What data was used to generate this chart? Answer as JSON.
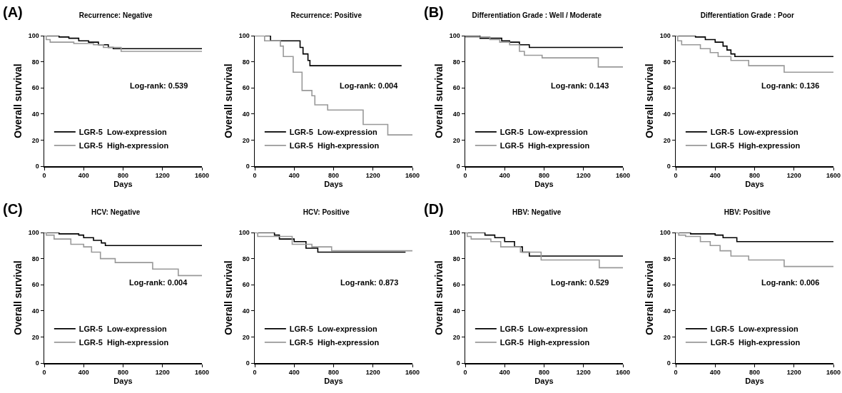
{
  "chart_data": [
    {
      "type": "step",
      "title": "Recurrence: Negative",
      "xlabel": "Days",
      "ylabel": "Overall survival",
      "annotations": [
        "(A)",
        "Log-rank: 0.539"
      ],
      "xlim": [
        0,
        1600
      ],
      "xticks": [
        0,
        400,
        800,
        1200,
        1600
      ],
      "ylim": [
        0,
        100
      ],
      "yticks": [
        0,
        20,
        40,
        60,
        80,
        100
      ],
      "legend": "bottom left",
      "grid": false,
      "series": [
        {
          "name": "LGR-5  Low-expression",
          "color": "#000000",
          "x": [
            0,
            150,
            250,
            350,
            450,
            550,
            650,
            700,
            1600
          ],
          "values": [
            100,
            99,
            98,
            96,
            95,
            93,
            91,
            90,
            90
          ]
        },
        {
          "name": "LGR-5  High-expression",
          "color": "#999999",
          "x": [
            0,
            20,
            60,
            300,
            500,
            600,
            780,
            1600
          ],
          "values": [
            100,
            97,
            95,
            94,
            93,
            91,
            88,
            88
          ]
        }
      ]
    },
    {
      "type": "step",
      "title": "Recurrence: Positive",
      "xlabel": "Days",
      "ylabel": "Overall survival",
      "annotations": [
        "Log-rank: 0.004"
      ],
      "xlim": [
        0,
        1600
      ],
      "xticks": [
        0,
        400,
        800,
        1200,
        1600
      ],
      "ylim": [
        0,
        100
      ],
      "yticks": [
        0,
        20,
        40,
        60,
        80,
        100
      ],
      "legend": "bottom left",
      "grid": false,
      "series": [
        {
          "name": "LGR-5  Low-expression",
          "color": "#000000",
          "x": [
            0,
            160,
            460,
            490,
            540,
            560,
            1490
          ],
          "values": [
            100,
            96,
            91,
            86,
            81,
            77,
            77
          ]
        },
        {
          "name": "LGR-5  High-expression",
          "color": "#999999",
          "x": [
            0,
            100,
            260,
            290,
            390,
            480,
            580,
            610,
            740,
            1100,
            1350,
            1600
          ],
          "values": [
            100,
            96,
            92,
            84,
            72,
            58,
            54,
            47,
            43,
            32,
            24,
            24
          ]
        }
      ]
    },
    {
      "type": "step",
      "title": "Differentiation Grade : Well / Moderate",
      "xlabel": "Days",
      "ylabel": "Overall survival",
      "annotations": [
        "(B)",
        "Log-rank: 0.143"
      ],
      "xlim": [
        0,
        1600
      ],
      "xticks": [
        0,
        400,
        800,
        1200,
        1600
      ],
      "ylim": [
        0,
        100
      ],
      "yticks": [
        0,
        20,
        40,
        60,
        80,
        100
      ],
      "legend": "bottom left",
      "grid": false,
      "series": [
        {
          "name": "LGR-5  Low-expression",
          "color": "#000000",
          "x": [
            0,
            150,
            370,
            450,
            550,
            650,
            1600
          ],
          "values": [
            100,
            98,
            96,
            95,
            93,
            91,
            91
          ]
        },
        {
          "name": "LGR-5  High-expression",
          "color": "#999999",
          "x": [
            0,
            250,
            350,
            450,
            550,
            600,
            780,
            1350,
            1600
          ],
          "values": [
            99,
            97,
            95,
            93,
            88,
            85,
            83,
            76,
            76
          ]
        }
      ]
    },
    {
      "type": "step",
      "title": "Differentiation Grade : Poor",
      "xlabel": "Days",
      "ylabel": "Overall survival",
      "annotations": [
        "Log-rank: 0.136"
      ],
      "xlim": [
        0,
        1600
      ],
      "xticks": [
        0,
        400,
        800,
        1200,
        1600
      ],
      "ylim": [
        0,
        100
      ],
      "yticks": [
        0,
        20,
        40,
        60,
        80,
        100
      ],
      "legend": "bottom left",
      "grid": false,
      "series": [
        {
          "name": "LGR-5  Low-expression",
          "color": "#000000",
          "x": [
            0,
            200,
            300,
            400,
            480,
            520,
            560,
            600,
            1600
          ],
          "values": [
            100,
            99,
            97,
            95,
            92,
            89,
            86,
            84,
            84
          ]
        },
        {
          "name": "LGR-5  High-expression",
          "color": "#999999",
          "x": [
            0,
            20,
            60,
            250,
            350,
            430,
            560,
            740,
            1100,
            1600
          ],
          "values": [
            100,
            96,
            93,
            90,
            87,
            84,
            81,
            77,
            72,
            72
          ]
        }
      ]
    },
    {
      "type": "step",
      "title": "HCV: Negative",
      "xlabel": "Days",
      "ylabel": "Overall survival",
      "annotations": [
        "(C)",
        "Log-rank: 0.004"
      ],
      "xlim": [
        0,
        1600
      ],
      "xticks": [
        0,
        400,
        800,
        1200,
        1600
      ],
      "ylim": [
        0,
        100
      ],
      "yticks": [
        0,
        20,
        40,
        60,
        80,
        100
      ],
      "legend": "bottom left",
      "grid": false,
      "series": [
        {
          "name": "LGR-5  Low-expression",
          "color": "#000000",
          "x": [
            0,
            150,
            350,
            400,
            500,
            580,
            620,
            1600
          ],
          "values": [
            100,
            99,
            98,
            96,
            94,
            92,
            90,
            90
          ]
        },
        {
          "name": "LGR-5  High-expression",
          "color": "#999999",
          "x": [
            0,
            20,
            100,
            270,
            400,
            480,
            570,
            720,
            1100,
            1360,
            1600
          ],
          "values": [
            100,
            98,
            95,
            91,
            89,
            85,
            80,
            77,
            72,
            67,
            67
          ]
        }
      ]
    },
    {
      "type": "step",
      "title": "HCV: Positive",
      "xlabel": "Days",
      "ylabel": "Overall survival",
      "annotations": [
        "Log-rank: 0.873"
      ],
      "xlim": [
        0,
        1600
      ],
      "xticks": [
        0,
        400,
        800,
        1200,
        1600
      ],
      "ylim": [
        0,
        100
      ],
      "yticks": [
        0,
        20,
        40,
        60,
        80,
        100
      ],
      "legend": "bottom left",
      "grid": false,
      "series": [
        {
          "name": "LGR-5  Low-expression",
          "color": "#000000",
          "x": [
            0,
            200,
            250,
            400,
            520,
            640,
            1530
          ],
          "values": [
            100,
            98,
            95,
            93,
            88,
            85,
            85
          ]
        },
        {
          "name": "LGR-5  High-expression",
          "color": "#999999",
          "x": [
            0,
            30,
            380,
            580,
            780,
            1600
          ],
          "values": [
            100,
            97,
            91,
            89,
            86,
            86
          ]
        }
      ]
    },
    {
      "type": "step",
      "title": "HBV: Negative",
      "xlabel": "Days",
      "ylabel": "Overall survival",
      "annotations": [
        "(D)",
        "Log-rank: 0.529"
      ],
      "xlim": [
        0,
        1600
      ],
      "xticks": [
        0,
        400,
        800,
        1200,
        1600
      ],
      "ylim": [
        0,
        100
      ],
      "yticks": [
        0,
        20,
        40,
        60,
        80,
        100
      ],
      "legend": "bottom left",
      "grid": false,
      "series": [
        {
          "name": "LGR-5  Low-expression",
          "color": "#000000",
          "x": [
            0,
            200,
            300,
            400,
            500,
            580,
            650,
            1600
          ],
          "values": [
            100,
            98,
            96,
            93,
            89,
            85,
            82,
            82
          ]
        },
        {
          "name": "LGR-5  High-expression",
          "color": "#999999",
          "x": [
            0,
            20,
            60,
            260,
            360,
            560,
            770,
            1360,
            1600
          ],
          "values": [
            100,
            97,
            95,
            93,
            89,
            85,
            79,
            73,
            73
          ]
        }
      ]
    },
    {
      "type": "step",
      "title": "HBV: Positive",
      "xlabel": "Days",
      "ylabel": "Overall survival",
      "annotations": [
        "Log-rank: 0.006"
      ],
      "xlim": [
        0,
        1600
      ],
      "xticks": [
        0,
        400,
        800,
        1200,
        1600
      ],
      "ylim": [
        0,
        100
      ],
      "yticks": [
        0,
        20,
        40,
        60,
        80,
        100
      ],
      "legend": "bottom left",
      "grid": false,
      "series": [
        {
          "name": "LGR-5  Low-expression",
          "color": "#000000",
          "x": [
            0,
            150,
            400,
            480,
            620,
            1600
          ],
          "values": [
            100,
            99,
            98,
            96,
            93,
            93
          ]
        },
        {
          "name": "LGR-5  High-expression",
          "color": "#999999",
          "x": [
            0,
            30,
            100,
            250,
            350,
            450,
            560,
            740,
            1100,
            1600
          ],
          "values": [
            100,
            98,
            97,
            93,
            90,
            86,
            82,
            79,
            74,
            74
          ]
        }
      ]
    }
  ]
}
